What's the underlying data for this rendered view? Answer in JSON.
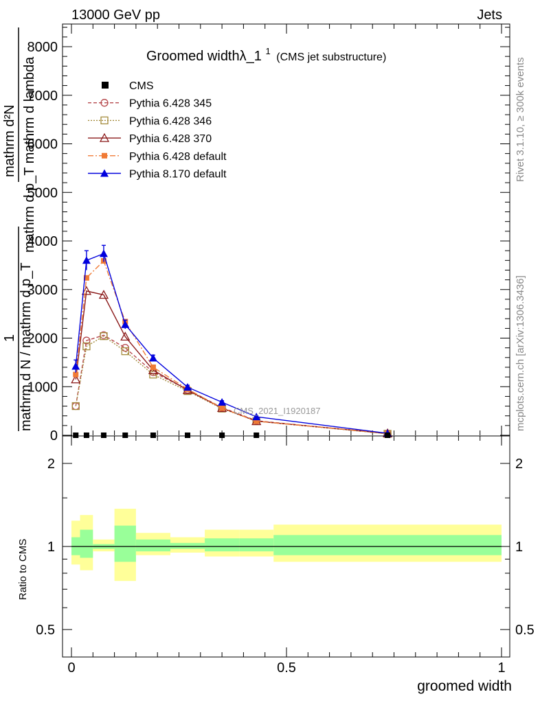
{
  "header": {
    "left": "13000 GeV pp",
    "right": "Jets"
  },
  "side_labels": {
    "rivet": "Rivet 3.1.10, ≥ 300k events",
    "mcplots": "mcplots.cern.ch [arXiv:1306.3436]"
  },
  "chart_data": {
    "type": "line",
    "title_main": "Groomed widthλ_1",
    "title_sup": "1",
    "title_sub": "(CMS jet substructure)",
    "ylabel_top": "mathrm d²N",
    "ylabel_top_denominator": "mathrm d p_T mathrm d lambda",
    "ylabel_one": "1",
    "ylabel_bottom": "mathrm d N / mathrm d p_T",
    "analysis_label": "CMS_2021_I1920187",
    "xlabel": "groomed width",
    "xlim": [
      0,
      1
    ],
    "ylim": [
      0,
      8500
    ],
    "x_ticks": [
      "0",
      "0.5",
      "1"
    ],
    "y_ticks": [
      "0",
      "1000",
      "2000",
      "3000",
      "4000",
      "5000",
      "6000",
      "7000",
      "8000"
    ],
    "x": [
      0.01,
      0.035,
      0.075,
      0.125,
      0.19,
      0.27,
      0.35,
      0.43,
      0.735
    ],
    "cms": {
      "name": "CMS",
      "values": [
        0,
        0,
        0,
        0,
        0,
        0,
        0,
        0,
        0
      ]
    },
    "series": [
      {
        "name": "Pythia 6.428 345",
        "color": "#b5474b",
        "marker": "circle-open",
        "dash": "5,3",
        "values": [
          600,
          1950,
          2060,
          1800,
          1300,
          940,
          570,
          300,
          30
        ]
      },
      {
        "name": "Pythia 6.428 346",
        "color": "#a38a3a",
        "marker": "square-open",
        "dash": "2,2",
        "values": [
          600,
          1830,
          2040,
          1730,
          1250,
          910,
          550,
          290,
          30
        ]
      },
      {
        "name": "Pythia 6.428 370",
        "color": "#8b1a1a",
        "marker": "triangle-open",
        "dash": "",
        "values": [
          1150,
          2970,
          2890,
          2030,
          1340,
          930,
          560,
          290,
          40
        ]
      },
      {
        "name": "Pythia 6.428 default",
        "color": "#f07a35",
        "marker": "square-filled",
        "dash": "8,3,2,3",
        "values": [
          1250,
          3240,
          3590,
          2340,
          1400,
          950,
          560,
          290,
          40
        ]
      },
      {
        "name": "Pythia 8.170 default",
        "color": "#0000dd",
        "marker": "triangle-filled",
        "dash": "",
        "values": [
          1420,
          3600,
          3740,
          2280,
          1590,
          990,
          680,
          380,
          40
        ]
      }
    ],
    "error_bars": {
      "series_index": 4,
      "errors": [
        130,
        200,
        170,
        90,
        60,
        40,
        30,
        20,
        10
      ]
    },
    "ratio": {
      "ylabel": "Ratio to CMS",
      "ylim": [
        0.35,
        2.3
      ],
      "y_ticks": [
        "0.5",
        "1",
        "2"
      ],
      "bins": [
        {
          "x0": 0.0,
          "x1": 0.02,
          "green": [
            0.93,
            1.08
          ],
          "yellow": [
            0.86,
            1.24
          ]
        },
        {
          "x0": 0.02,
          "x1": 0.05,
          "green": [
            0.91,
            1.15
          ],
          "yellow": [
            0.82,
            1.3
          ]
        },
        {
          "x0": 0.05,
          "x1": 0.1,
          "green": [
            0.98,
            1.02
          ],
          "yellow": [
            0.96,
            1.06
          ]
        },
        {
          "x0": 0.1,
          "x1": 0.15,
          "green": [
            0.88,
            1.19
          ],
          "yellow": [
            0.75,
            1.37
          ]
        },
        {
          "x0": 0.15,
          "x1": 0.23,
          "green": [
            0.96,
            1.06
          ],
          "yellow": [
            0.93,
            1.12
          ]
        },
        {
          "x0": 0.23,
          "x1": 0.31,
          "green": [
            0.98,
            1.03
          ],
          "yellow": [
            0.95,
            1.08
          ]
        },
        {
          "x0": 0.31,
          "x1": 0.39,
          "green": [
            0.96,
            1.07
          ],
          "yellow": [
            0.92,
            1.15
          ]
        },
        {
          "x0": 0.39,
          "x1": 0.47,
          "green": [
            0.96,
            1.07
          ],
          "yellow": [
            0.92,
            1.15
          ]
        },
        {
          "x0": 0.47,
          "x1": 1.0,
          "green": [
            0.93,
            1.1
          ],
          "yellow": [
            0.88,
            1.2
          ]
        }
      ],
      "green_color": "#99ff99",
      "yellow_color": "#ffff99"
    }
  }
}
